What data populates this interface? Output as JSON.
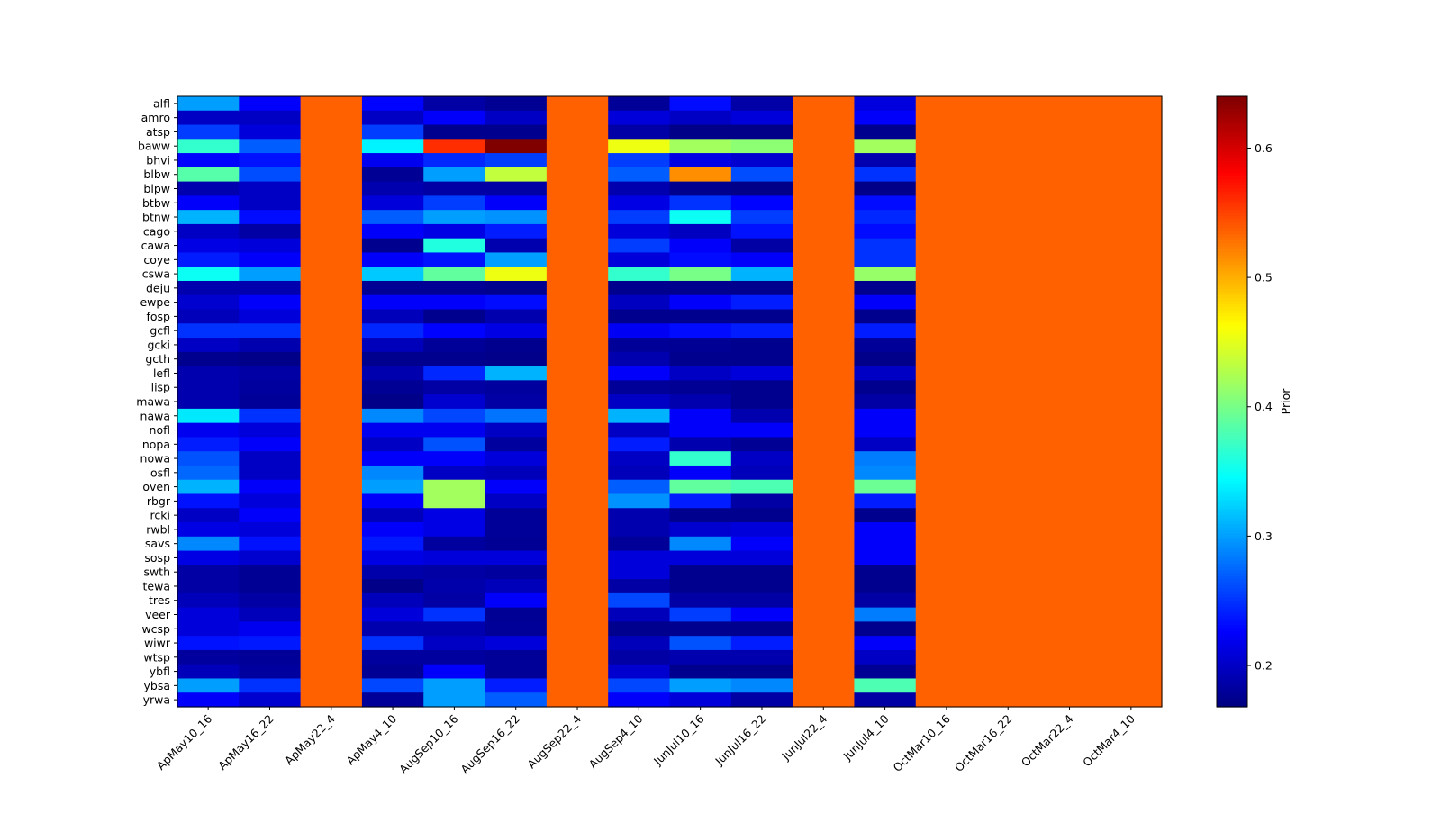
{
  "chart_data": {
    "type": "heatmap",
    "colormap": "jet",
    "colorbar": {
      "label": "Prior",
      "range": [
        0.168,
        0.64
      ],
      "ticks": [
        0.2,
        0.3,
        0.4,
        0.5,
        0.6
      ],
      "tick_labels": [
        "0.2",
        "0.3",
        "0.4",
        "0.5",
        "0.6"
      ]
    },
    "columns": [
      "ApMay10_16",
      "ApMay16_22",
      "ApMay22_4",
      "ApMay4_10",
      "AugSep10_16",
      "AugSep16_22",
      "AugSep22_4",
      "AugSep4_10",
      "JunJul10_16",
      "JunJul16_22",
      "JunJul22_4",
      "JunJul4_10",
      "OctMar10_16",
      "OctMar16_22",
      "OctMar22_4",
      "OctMar4_10"
    ],
    "rows": [
      "alfl",
      "amro",
      "atsp",
      "baww",
      "bhvi",
      "blbw",
      "blpw",
      "btbw",
      "btnw",
      "cago",
      "cawa",
      "coye",
      "cswa",
      "deju",
      "ewpe",
      "fosp",
      "gcfl",
      "gcki",
      "gcth",
      "lefl",
      "lisp",
      "mawa",
      "nawa",
      "nofl",
      "nopa",
      "nowa",
      "osfl",
      "oven",
      "rbgr",
      "rcki",
      "rwbl",
      "savs",
      "sosp",
      "swth",
      "tewa",
      "tres",
      "veer",
      "wcsp",
      "wiwr",
      "wtsp",
      "ybfl",
      "ybsa",
      "yrwa"
    ],
    "values": [
      [
        0.3,
        0.225,
        0.536,
        0.228,
        0.185,
        0.177,
        0.536,
        0.18,
        0.232,
        0.186,
        0.536,
        0.212,
        0.536,
        0.536,
        0.536,
        0.536
      ],
      [
        0.2,
        0.2,
        0.536,
        0.2,
        0.225,
        0.2,
        0.536,
        0.21,
        0.2,
        0.21,
        0.536,
        0.225,
        0.536,
        0.536,
        0.536,
        0.536
      ],
      [
        0.255,
        0.21,
        0.536,
        0.255,
        0.175,
        0.175,
        0.536,
        0.186,
        0.172,
        0.172,
        0.536,
        0.175,
        0.536,
        0.536,
        0.536,
        0.536
      ],
      [
        0.368,
        0.27,
        0.536,
        0.34,
        0.56,
        0.64,
        0.536,
        0.455,
        0.42,
        0.41,
        0.536,
        0.42,
        0.536,
        0.536,
        0.536,
        0.536
      ],
      [
        0.228,
        0.235,
        0.536,
        0.22,
        0.245,
        0.255,
        0.536,
        0.255,
        0.215,
        0.205,
        0.536,
        0.19,
        0.536,
        0.536,
        0.536,
        0.536
      ],
      [
        0.385,
        0.262,
        0.536,
        0.178,
        0.3,
        0.435,
        0.536,
        0.27,
        0.515,
        0.262,
        0.536,
        0.25,
        0.536,
        0.536,
        0.536,
        0.536
      ],
      [
        0.19,
        0.2,
        0.536,
        0.19,
        0.185,
        0.185,
        0.536,
        0.19,
        0.175,
        0.172,
        0.536,
        0.172,
        0.536,
        0.536,
        0.536,
        0.536
      ],
      [
        0.225,
        0.2,
        0.536,
        0.21,
        0.255,
        0.225,
        0.536,
        0.215,
        0.25,
        0.228,
        0.536,
        0.232,
        0.536,
        0.536,
        0.536,
        0.536
      ],
      [
        0.31,
        0.232,
        0.536,
        0.27,
        0.3,
        0.295,
        0.536,
        0.255,
        0.35,
        0.255,
        0.536,
        0.245,
        0.536,
        0.536,
        0.536,
        0.536
      ],
      [
        0.2,
        0.185,
        0.536,
        0.225,
        0.215,
        0.24,
        0.536,
        0.21,
        0.198,
        0.235,
        0.536,
        0.232,
        0.536,
        0.536,
        0.536,
        0.536
      ],
      [
        0.215,
        0.21,
        0.536,
        0.175,
        0.36,
        0.19,
        0.536,
        0.255,
        0.225,
        0.185,
        0.536,
        0.25,
        0.536,
        0.536,
        0.536,
        0.536
      ],
      [
        0.24,
        0.225,
        0.536,
        0.225,
        0.235,
        0.3,
        0.536,
        0.21,
        0.232,
        0.225,
        0.536,
        0.25,
        0.536,
        0.536,
        0.536,
        0.536
      ],
      [
        0.35,
        0.3,
        0.536,
        0.32,
        0.39,
        0.455,
        0.536,
        0.368,
        0.4,
        0.31,
        0.536,
        0.415,
        0.536,
        0.536,
        0.536,
        0.536
      ],
      [
        0.19,
        0.19,
        0.536,
        0.178,
        0.178,
        0.175,
        0.536,
        0.175,
        0.175,
        0.175,
        0.536,
        0.175,
        0.536,
        0.536,
        0.536,
        0.536
      ],
      [
        0.205,
        0.225,
        0.536,
        0.225,
        0.225,
        0.232,
        0.536,
        0.198,
        0.225,
        0.24,
        0.536,
        0.225,
        0.536,
        0.536,
        0.536,
        0.536
      ],
      [
        0.195,
        0.21,
        0.536,
        0.195,
        0.175,
        0.19,
        0.536,
        0.175,
        0.175,
        0.175,
        0.536,
        0.175,
        0.536,
        0.536,
        0.536,
        0.536
      ],
      [
        0.25,
        0.25,
        0.536,
        0.245,
        0.228,
        0.215,
        0.536,
        0.222,
        0.232,
        0.24,
        0.536,
        0.24,
        0.536,
        0.536,
        0.536,
        0.536
      ],
      [
        0.2,
        0.19,
        0.536,
        0.195,
        0.18,
        0.175,
        0.536,
        0.18,
        0.178,
        0.175,
        0.536,
        0.18,
        0.536,
        0.536,
        0.536,
        0.536
      ],
      [
        0.175,
        0.172,
        0.536,
        0.175,
        0.175,
        0.173,
        0.536,
        0.19,
        0.175,
        0.175,
        0.536,
        0.173,
        0.536,
        0.536,
        0.536,
        0.536
      ],
      [
        0.19,
        0.185,
        0.536,
        0.19,
        0.245,
        0.31,
        0.536,
        0.225,
        0.2,
        0.21,
        0.536,
        0.2,
        0.536,
        0.536,
        0.536,
        0.536
      ],
      [
        0.19,
        0.182,
        0.536,
        0.178,
        0.185,
        0.182,
        0.536,
        0.18,
        0.178,
        0.175,
        0.536,
        0.175,
        0.536,
        0.536,
        0.536,
        0.536
      ],
      [
        0.19,
        0.18,
        0.536,
        0.172,
        0.205,
        0.185,
        0.536,
        0.2,
        0.19,
        0.175,
        0.536,
        0.185,
        0.536,
        0.536,
        0.536,
        0.536
      ],
      [
        0.335,
        0.25,
        0.536,
        0.29,
        0.26,
        0.28,
        0.536,
        0.31,
        0.225,
        0.19,
        0.536,
        0.225,
        0.536,
        0.536,
        0.536,
        0.536
      ],
      [
        0.22,
        0.21,
        0.536,
        0.22,
        0.22,
        0.2,
        0.536,
        0.2,
        0.225,
        0.225,
        0.536,
        0.225,
        0.536,
        0.536,
        0.536,
        0.536
      ],
      [
        0.24,
        0.225,
        0.536,
        0.2,
        0.265,
        0.182,
        0.536,
        0.24,
        0.19,
        0.178,
        0.536,
        0.2,
        0.536,
        0.536,
        0.536,
        0.536
      ],
      [
        0.265,
        0.2,
        0.536,
        0.225,
        0.225,
        0.21,
        0.536,
        0.2,
        0.368,
        0.2,
        0.536,
        0.285,
        0.536,
        0.536,
        0.536,
        0.536
      ],
      [
        0.275,
        0.2,
        0.536,
        0.29,
        0.2,
        0.195,
        0.536,
        0.195,
        0.225,
        0.195,
        0.536,
        0.29,
        0.536,
        0.536,
        0.536,
        0.536
      ],
      [
        0.31,
        0.225,
        0.536,
        0.3,
        0.42,
        0.225,
        0.536,
        0.27,
        0.39,
        0.38,
        0.536,
        0.395,
        0.536,
        0.536,
        0.536,
        0.536
      ],
      [
        0.235,
        0.21,
        0.536,
        0.225,
        0.42,
        0.2,
        0.536,
        0.295,
        0.24,
        0.185,
        0.536,
        0.24,
        0.536,
        0.536,
        0.536,
        0.536
      ],
      [
        0.2,
        0.225,
        0.536,
        0.195,
        0.215,
        0.18,
        0.536,
        0.19,
        0.175,
        0.175,
        0.536,
        0.175,
        0.536,
        0.536,
        0.536,
        0.536
      ],
      [
        0.215,
        0.21,
        0.536,
        0.225,
        0.215,
        0.18,
        0.536,
        0.19,
        0.205,
        0.21,
        0.536,
        0.225,
        0.536,
        0.536,
        0.536,
        0.536
      ],
      [
        0.29,
        0.235,
        0.536,
        0.238,
        0.182,
        0.178,
        0.536,
        0.18,
        0.29,
        0.225,
        0.536,
        0.225,
        0.536,
        0.536,
        0.536,
        0.536
      ],
      [
        0.215,
        0.205,
        0.536,
        0.215,
        0.21,
        0.21,
        0.536,
        0.21,
        0.21,
        0.21,
        0.536,
        0.225,
        0.536,
        0.536,
        0.536,
        0.536
      ],
      [
        0.185,
        0.178,
        0.536,
        0.188,
        0.185,
        0.182,
        0.536,
        0.21,
        0.175,
        0.175,
        0.536,
        0.175,
        0.536,
        0.536,
        0.536,
        0.536
      ],
      [
        0.185,
        0.178,
        0.536,
        0.172,
        0.188,
        0.195,
        0.536,
        0.185,
        0.175,
        0.175,
        0.536,
        0.175,
        0.536,
        0.536,
        0.536,
        0.536
      ],
      [
        0.195,
        0.185,
        0.536,
        0.195,
        0.185,
        0.225,
        0.536,
        0.26,
        0.185,
        0.185,
        0.536,
        0.185,
        0.536,
        0.536,
        0.536,
        0.536
      ],
      [
        0.21,
        0.195,
        0.536,
        0.21,
        0.25,
        0.178,
        0.536,
        0.195,
        0.255,
        0.225,
        0.536,
        0.285,
        0.536,
        0.536,
        0.536,
        0.536
      ],
      [
        0.21,
        0.22,
        0.536,
        0.19,
        0.19,
        0.18,
        0.536,
        0.175,
        0.175,
        0.175,
        0.536,
        0.175,
        0.536,
        0.536,
        0.536,
        0.536
      ],
      [
        0.235,
        0.238,
        0.536,
        0.25,
        0.2,
        0.21,
        0.536,
        0.195,
        0.265,
        0.24,
        0.536,
        0.225,
        0.536,
        0.536,
        0.536,
        0.536
      ],
      [
        0.182,
        0.18,
        0.536,
        0.182,
        0.182,
        0.18,
        0.536,
        0.185,
        0.19,
        0.19,
        0.536,
        0.2,
        0.536,
        0.536,
        0.536,
        0.536
      ],
      [
        0.195,
        0.182,
        0.536,
        0.178,
        0.225,
        0.18,
        0.536,
        0.205,
        0.175,
        0.175,
        0.536,
        0.178,
        0.536,
        0.536,
        0.536,
        0.536
      ],
      [
        0.3,
        0.25,
        0.536,
        0.26,
        0.3,
        0.24,
        0.536,
        0.26,
        0.3,
        0.29,
        0.536,
        0.38,
        0.536,
        0.536,
        0.536,
        0.536
      ],
      [
        0.225,
        0.205,
        0.536,
        0.18,
        0.3,
        0.27,
        0.536,
        0.225,
        0.21,
        0.185,
        0.536,
        0.185,
        0.536,
        0.536,
        0.536,
        0.536
      ]
    ]
  }
}
